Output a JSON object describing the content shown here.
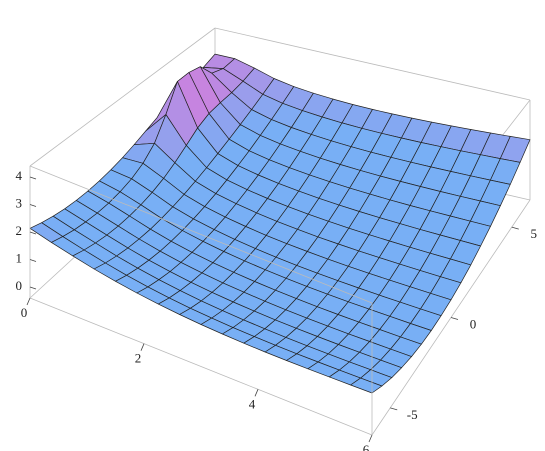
{
  "chart_data": {
    "type": "surface",
    "xlim": [
      0,
      6
    ],
    "ylim": [
      -6.5,
      6.5
    ],
    "zlim": [
      -0.4,
      4.4
    ],
    "xticks": [
      0,
      2,
      4,
      6
    ],
    "yticks": [
      -5,
      0,
      5
    ],
    "zticks": [
      0,
      1,
      2,
      3,
      4
    ]
  }
}
